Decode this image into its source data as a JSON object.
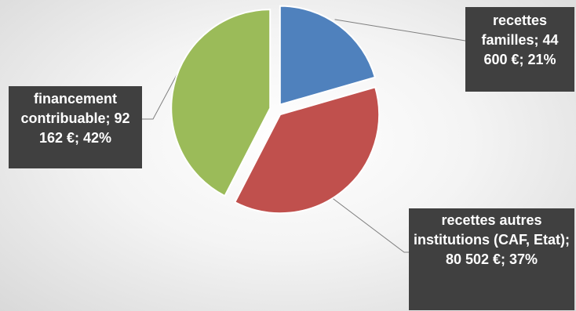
{
  "chart_data": {
    "type": "pie",
    "title": "",
    "legend": "none",
    "slices": [
      {
        "label": "recettes familles",
        "value_text": "44 600 €",
        "value": 44600,
        "percent": 21,
        "color": "#4f81bd",
        "label_text": "recettes familles; 44 600 €; 21%"
      },
      {
        "label": "recettes autres institutions (CAF, Etat)",
        "value_text": "80 502 €",
        "value": 80502,
        "percent": 37,
        "color": "#c0504d",
        "label_text": "recettes autres institutions (CAF, Etat); 80 502 €; 37%"
      },
      {
        "label": "financement contribuable",
        "value_text": "92 162 €",
        "value": 92162,
        "percent": 42,
        "color": "#9bbb59",
        "label_text": "financement contribuable; 92 162 €; 42%"
      }
    ],
    "leader_line_color": "#7f7f7f"
  }
}
